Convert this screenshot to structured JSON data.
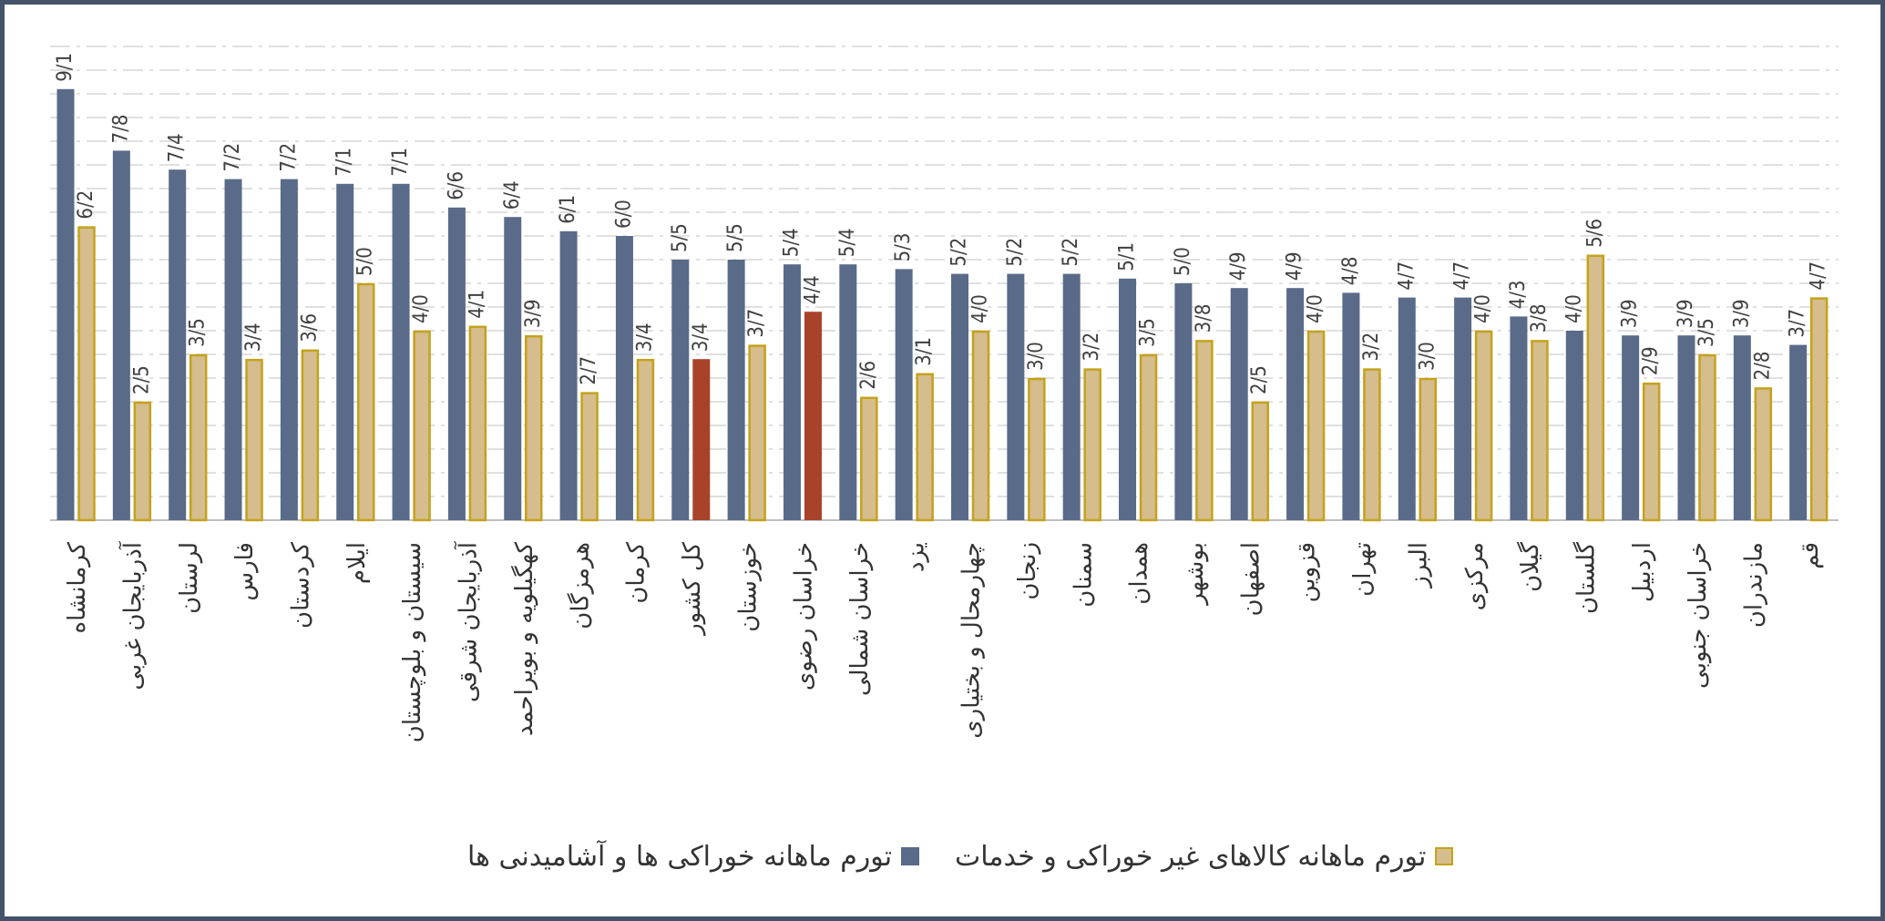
{
  "chart_data": {
    "type": "bar",
    "ylim": [
      0,
      10
    ],
    "grid": true,
    "legend_position": "bottom",
    "categories": [
      "کرمانشاه",
      "آذربایجان غربی",
      "لرستان",
      "فارس",
      "کردستان",
      "ایلام",
      "سیستان و بلوچستان",
      "آذربایجان شرقی",
      "کهگیلویه و بویراحمد",
      "هرمزگان",
      "کرمان",
      "کل کشور",
      "خوزستان",
      "خراسان رضوی",
      "خراسان شمالی",
      "یزد",
      "چهارمحال و بختیاری",
      "زنجان",
      "سمنان",
      "همدان",
      "بوشهر",
      "اصفهان",
      "قزوین",
      "تهران",
      "البرز",
      "مرکزی",
      "گیلان",
      "گلستان",
      "اردبیل",
      "خراسان جنوبی",
      "مازندران",
      "قم"
    ],
    "series": [
      {
        "name": "تورم ماهانه خوراکی ها و آشامیدنی ها",
        "color": "#5a6b89",
        "values": [
          9.1,
          7.8,
          7.4,
          7.2,
          7.2,
          7.1,
          7.1,
          6.6,
          6.4,
          6.1,
          6.0,
          5.5,
          5.5,
          5.4,
          5.4,
          5.3,
          5.2,
          5.2,
          5.2,
          5.1,
          5.0,
          4.9,
          4.9,
          4.8,
          4.7,
          4.7,
          4.3,
          4.0,
          3.9,
          3.9,
          3.9,
          3.7
        ],
        "labels": [
          "9/1",
          "7/8",
          "7/4",
          "7/2",
          "7/2",
          "7/1",
          "7/1",
          "6/6",
          "6/4",
          "6/1",
          "6/0",
          "5/5",
          "5/5",
          "5/4",
          "5/4",
          "5/3",
          "5/2",
          "5/2",
          "5/2",
          "5/1",
          "5/0",
          "4/9",
          "4/9",
          "4/8",
          "4/7",
          "4/7",
          "4/3",
          "4/0",
          "3/9",
          "3/9",
          "3/9",
          "3/7"
        ]
      },
      {
        "name": "تورم ماهانه کالاهای غیر خوراکی و خدمات",
        "color": "#d6bd8d",
        "border": "#c4a21c",
        "values": [
          6.2,
          2.5,
          3.5,
          3.4,
          3.6,
          5.0,
          4.0,
          4.1,
          3.9,
          2.7,
          3.4,
          3.4,
          3.7,
          4.4,
          2.6,
          3.1,
          4.0,
          3.0,
          3.2,
          3.5,
          3.8,
          2.5,
          4.0,
          3.2,
          3.0,
          4.0,
          3.8,
          5.6,
          2.9,
          3.5,
          2.8,
          4.7
        ],
        "labels": [
          "6/2",
          "2/5",
          "3/5",
          "3/4",
          "3/6",
          "5/0",
          "4/0",
          "4/1",
          "3/9",
          "2/7",
          "3/4",
          "3/4",
          "3/7",
          "4/4",
          "2/6",
          "3/1",
          "4/0",
          "3/0",
          "3/2",
          "3/5",
          "3/8",
          "2/5",
          "4/0",
          "3/2",
          "3/0",
          "4/0",
          "3/8",
          "5/6",
          "2/9",
          "3/5",
          "2/8",
          "4/7"
        ]
      }
    ],
    "highlight": {
      "category_indices": [
        11,
        13
      ],
      "color": "#a8432a"
    }
  }
}
